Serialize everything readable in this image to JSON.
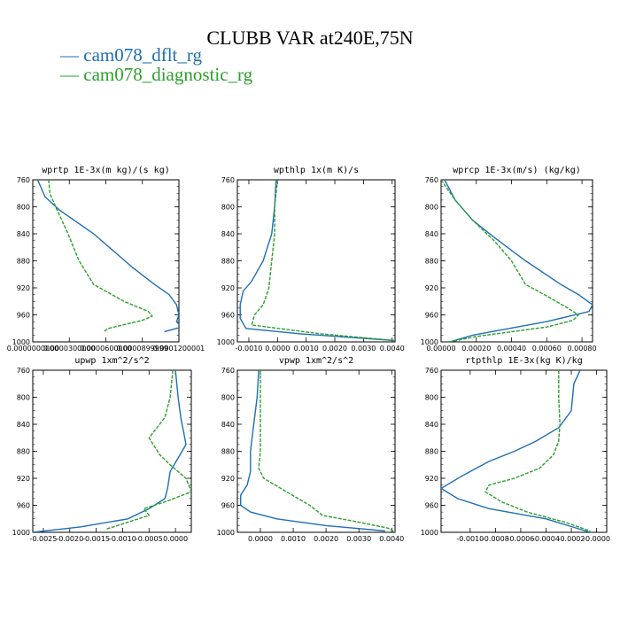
{
  "title": "CLUBB VAR at240E,75N",
  "legend": [
    {
      "label": "— cam078_dflt_rg",
      "color": "#1f6fb4"
    },
    {
      "label": "— cam078_diagnostic_rg",
      "color": "#2ca02c"
    }
  ],
  "chart_data": [
    {
      "type": "line",
      "title": "wprtp  1E-3x(m kg)/(s kg)",
      "xlim": [
        0.0,
        0.00012
      ],
      "ylim": [
        760,
        1000
      ],
      "yticks": [
        760,
        800,
        840,
        880,
        920,
        960,
        1000
      ],
      "xtick_labels": [
        {
          "v": 0.0,
          "t": "0.0000000000"
        },
        {
          "v": 3e-05,
          "t": "0.0000300000"
        },
        {
          "v": 6e-05,
          "t": "0.0000600000"
        },
        {
          "v": 9e-05,
          "t": "0.0000899999"
        },
        {
          "v": 0.00012,
          "t": "0.0001200001"
        }
      ],
      "series": [
        {
          "name": "cam078_dflt_rg",
          "color": "#1f6fb4",
          "dashed": false,
          "x": [
            4e-06,
            1e-05,
            2.2e-05,
            5e-05,
            8.2e-05,
            0.0001,
            0.000112,
            0.000118,
            0.00012,
            0.000118,
            0.000122,
            0.000108
          ],
          "y": [
            760,
            785,
            805,
            840,
            890,
            915,
            930,
            945,
            960,
            970,
            978,
            985
          ]
        },
        {
          "name": "cam078_diagnostic_rg",
          "color": "#2ca02c",
          "dashed": true,
          "x": [
            1.3e-05,
            1.4e-05,
            2e-05,
            2.9e-05,
            3.8e-05,
            5e-05,
            7.5e-05,
            9.5e-05,
            9.8e-05,
            9e-05,
            6.2e-05,
            5.8e-05
          ],
          "y": [
            760,
            780,
            805,
            840,
            880,
            915,
            940,
            955,
            962,
            968,
            980,
            985
          ]
        }
      ]
    },
    {
      "type": "line",
      "title": "wpthlp  1x(m K)/s",
      "xlim": [
        -0.0014,
        0.0041
      ],
      "ylim": [
        760,
        1000
      ],
      "yticks": [
        760,
        800,
        840,
        880,
        920,
        960,
        1000
      ],
      "xtick_labels": [
        {
          "v": -0.001,
          "t": "-0.0010"
        },
        {
          "v": 0.0,
          "t": "0.0000"
        },
        {
          "v": 0.001,
          "t": "0.0010"
        },
        {
          "v": 0.002,
          "t": "0.0020"
        },
        {
          "v": 0.003,
          "t": "0.0030"
        },
        {
          "v": 0.004,
          "t": "0.0040"
        }
      ],
      "series": [
        {
          "name": "cam078_dflt_rg",
          "color": "#1f6fb4",
          "dashed": false,
          "x": [
            -5e-05,
            -0.0001,
            -0.0002,
            -0.0005,
            -0.0009,
            -0.0012,
            -0.0013,
            -0.0013,
            -0.0011,
            0.0008,
            0.0041
          ],
          "y": [
            760,
            800,
            840,
            880,
            910,
            925,
            945,
            965,
            980,
            988,
            998
          ]
        },
        {
          "name": "cam078_diagnostic_rg",
          "color": "#2ca02c",
          "dashed": true,
          "x": [
            0.0,
            -0.0001,
            -0.0001,
            -0.0002,
            -0.0003,
            -0.0005,
            -0.0008,
            -0.0009,
            0.0015,
            0.0041
          ],
          "y": [
            760,
            800,
            840,
            880,
            920,
            945,
            960,
            975,
            988,
            998
          ]
        }
      ]
    },
    {
      "type": "line",
      "title": "wprcp  1E-3x(m/s) (kg/kg)",
      "xlim": [
        0.0,
        0.00086
      ],
      "ylim": [
        760,
        1000
      ],
      "yticks": [
        760,
        800,
        840,
        880,
        920,
        960,
        1000
      ],
      "xtick_labels": [
        {
          "v": 0.0,
          "t": "0.00000"
        },
        {
          "v": 0.0002,
          "t": "0.00020"
        },
        {
          "v": 0.0004,
          "t": "0.00040"
        },
        {
          "v": 0.0006,
          "t": "0.00060"
        },
        {
          "v": 0.0008,
          "t": "0.00080"
        }
      ],
      "series": [
        {
          "name": "cam078_dflt_rg",
          "color": "#1f6fb4",
          "dashed": false,
          "x": [
            2e-05,
            8e-05,
            0.00018,
            0.0003,
            0.00048,
            0.00068,
            0.00078,
            0.00086,
            0.00084,
            0.0006,
            0.00018,
            5e-05
          ],
          "y": [
            760,
            790,
            820,
            845,
            880,
            915,
            930,
            945,
            955,
            970,
            990,
            1000
          ]
        },
        {
          "name": "cam078_diagnostic_rg",
          "color": "#2ca02c",
          "dashed": true,
          "x": [
            0.0,
            8e-05,
            0.00018,
            0.0003,
            0.0004,
            0.00048,
            0.00062,
            0.00072,
            0.00078,
            0.00075,
            0.0006,
            0.0002,
            5e-05
          ],
          "y": [
            760,
            790,
            820,
            850,
            880,
            915,
            935,
            950,
            960,
            968,
            978,
            992,
            1000
          ]
        }
      ]
    },
    {
      "type": "line",
      "title": "upwp  1xm^2/s^2",
      "xlim": [
        -0.0027,
        0.0003
      ],
      "ylim": [
        760,
        1000
      ],
      "yticks": [
        760,
        800,
        840,
        880,
        920,
        960,
        1000
      ],
      "xtick_labels": [
        {
          "v": -0.0025,
          "t": "-0.0025"
        },
        {
          "v": -0.002,
          "t": "-0.0020"
        },
        {
          "v": -0.0015,
          "t": "-0.0015"
        },
        {
          "v": -0.001,
          "t": "-0.0010"
        },
        {
          "v": -0.0005,
          "t": "-0.0005"
        },
        {
          "v": 0.0,
          "t": "0.0000"
        }
      ],
      "series": [
        {
          "name": "cam078_dflt_rg",
          "color": "#1f6fb4",
          "dashed": false,
          "x": [
            0.0,
            5e-05,
            0.0001,
            0.00015,
            0.0002,
            5e-05,
            -0.0001,
            -0.00015,
            -0.0002,
            -0.0005,
            -0.0009,
            -0.0018,
            -0.0027
          ],
          "y": [
            760,
            800,
            830,
            850,
            870,
            890,
            910,
            935,
            950,
            965,
            980,
            992,
            1000
          ]
        },
        {
          "name": "cam078_diagnostic_rg",
          "color": "#2ca02c",
          "dashed": true,
          "x": [
            -5e-05,
            -0.0001,
            -0.0002,
            -0.0005,
            -0.0003,
            -0.0001,
            0.0002,
            0.0003,
            -0.0002,
            -0.0006,
            -0.0005,
            -0.0009,
            -0.0013
          ],
          "y": [
            760,
            800,
            830,
            860,
            885,
            900,
            920,
            940,
            955,
            965,
            975,
            985,
            995
          ]
        }
      ]
    },
    {
      "type": "line",
      "title": "vpwp  1xm^2/s^2",
      "xlim": [
        -0.0007,
        0.0041
      ],
      "ylim": [
        760,
        1000
      ],
      "yticks": [
        760,
        800,
        840,
        880,
        920,
        960,
        1000
      ],
      "xtick_labels": [
        {
          "v": 0.0,
          "t": "0.0000"
        },
        {
          "v": 0.001,
          "t": "0.0010"
        },
        {
          "v": 0.002,
          "t": "0.0020"
        },
        {
          "v": 0.003,
          "t": "0.0030"
        },
        {
          "v": 0.004,
          "t": "0.0040"
        }
      ],
      "series": [
        {
          "name": "cam078_dflt_rg",
          "color": "#1f6fb4",
          "dashed": false,
          "x": [
            -5e-05,
            -0.0001,
            -0.0002,
            -0.0003,
            -0.0003,
            -0.0004,
            -0.0006,
            -0.0006,
            -0.0003,
            0.0005,
            0.002,
            0.0038
          ],
          "y": [
            760,
            800,
            840,
            880,
            910,
            930,
            945,
            960,
            970,
            980,
            990,
            998
          ]
        },
        {
          "name": "cam078_diagnostic_rg",
          "color": "#2ca02c",
          "dashed": true,
          "x": [
            0.0,
            0.0,
            0.0,
            0.0,
            -5e-05,
            0.0001,
            0.0008,
            0.0015,
            0.0019,
            0.003,
            0.0039,
            0.0041
          ],
          "y": [
            760,
            800,
            840,
            880,
            905,
            920,
            940,
            960,
            975,
            985,
            994,
            1000
          ]
        }
      ]
    },
    {
      "type": "line",
      "title": "rtpthlp  1E-3x(kg K)/kg",
      "xlim": [
        -0.00123,
        8e-05
      ],
      "ylim": [
        760,
        1000
      ],
      "yticks": [
        760,
        800,
        840,
        880,
        920,
        960,
        1000
      ],
      "xtick_labels": [
        {
          "v": -0.001,
          "t": "-0.0010"
        },
        {
          "v": -0.0008,
          "t": "-0.0008"
        },
        {
          "v": -0.0006,
          "t": "-0.0006"
        },
        {
          "v": -0.0004,
          "t": "-0.0004"
        },
        {
          "v": -0.0002,
          "t": "-0.0002"
        },
        {
          "v": 0.0,
          "t": "-0.0000"
        }
      ],
      "series": [
        {
          "name": "cam078_dflt_rg",
          "color": "#1f6fb4",
          "dashed": false,
          "x": [
            -0.00013,
            -0.00018,
            -0.0002,
            -0.0003,
            -0.00048,
            -0.00065,
            -0.00085,
            -0.00105,
            -0.00123,
            -0.0011,
            -0.00085,
            -0.0004,
            -5e-05
          ],
          "y": [
            760,
            780,
            820,
            845,
            865,
            880,
            895,
            915,
            935,
            950,
            965,
            980,
            1000
          ]
        },
        {
          "name": "cam078_diagnostic_rg",
          "color": "#2ca02c",
          "dashed": true,
          "x": [
            -0.0003,
            -0.0003,
            -0.00029,
            -0.0003,
            -0.00034,
            -0.00045,
            -0.00065,
            -0.00085,
            -0.00088,
            -0.00075,
            -0.00055,
            -0.00025,
            -5e-05
          ],
          "y": [
            760,
            800,
            840,
            865,
            885,
            905,
            920,
            930,
            940,
            955,
            970,
            985,
            998
          ]
        }
      ]
    }
  ]
}
